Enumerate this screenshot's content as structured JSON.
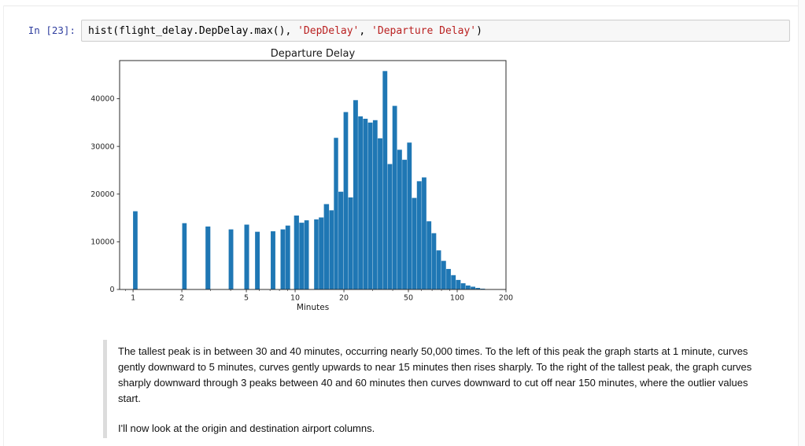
{
  "cell": {
    "prompt": "In [23]:",
    "code_tokens": [
      {
        "type": "plain",
        "text": "hist(flight_delay.DepDelay.max(), "
      },
      {
        "type": "string",
        "text": "'DepDelay'"
      },
      {
        "type": "plain",
        "text": ", "
      },
      {
        "type": "string",
        "text": "'Departure Delay'"
      },
      {
        "type": "plain",
        "text": ")"
      }
    ]
  },
  "chart_data": {
    "type": "bar",
    "subtype": "histogram",
    "title": "Departure Delay",
    "xlabel": "Minutes",
    "ylabel": "",
    "xscale": "log",
    "xlim": [
      0.826,
      200
    ],
    "ylim": [
      0,
      48000
    ],
    "xticks": [
      1,
      2,
      5,
      10,
      20,
      50,
      100,
      200
    ],
    "xticks_minor": [
      0.9,
      3,
      4,
      6,
      7,
      8,
      9,
      30,
      40,
      60,
      70,
      80,
      90
    ],
    "yticks": [
      0,
      10000,
      20000,
      30000,
      40000
    ],
    "grid": false,
    "legend": null,
    "bar_color": "#1f77b4",
    "bars_format": "[x_left_minutes, x_right_minutes, count]",
    "bars": [
      [
        1.0,
        1.07,
        16400
      ],
      [
        2.01,
        2.15,
        13900
      ],
      [
        2.8,
        3.01,
        13200
      ],
      [
        3.89,
        4.17,
        12600
      ],
      [
        4.86,
        5.22,
        13600
      ],
      [
        5.66,
        6.07,
        12100
      ],
      [
        7.07,
        7.58,
        12200
      ],
      [
        8.13,
        8.72,
        12600
      ],
      [
        8.72,
        9.35,
        13400
      ],
      [
        9.85,
        10.6,
        15500
      ],
      [
        10.6,
        11.4,
        14000
      ],
      [
        11.4,
        12.2,
        14500
      ],
      [
        13.1,
        14.0,
        14700
      ],
      [
        14.0,
        15.05,
        15100
      ],
      [
        15.05,
        16.25,
        17900
      ],
      [
        16.25,
        17.35,
        16600
      ],
      [
        17.35,
        18.5,
        31800
      ],
      [
        18.5,
        19.9,
        20500
      ],
      [
        19.9,
        21.3,
        37200
      ],
      [
        21.3,
        22.85,
        19300
      ],
      [
        22.85,
        24.5,
        39700
      ],
      [
        24.5,
        26.25,
        36300
      ],
      [
        26.25,
        28.15,
        35800
      ],
      [
        28.15,
        30.2,
        35000
      ],
      [
        30.2,
        32.35,
        35500
      ],
      [
        32.35,
        34.7,
        31700
      ],
      [
        34.7,
        37.2,
        45800
      ],
      [
        37.2,
        39.85,
        26300
      ],
      [
        39.85,
        42.7,
        38500
      ],
      [
        42.7,
        45.8,
        29300
      ],
      [
        45.8,
        49.1,
        27200
      ],
      [
        49.1,
        52.6,
        30800
      ],
      [
        52.6,
        56.4,
        19200
      ],
      [
        56.4,
        60.5,
        22700
      ],
      [
        60.5,
        64.8,
        23500
      ],
      [
        64.8,
        69.5,
        14300
      ],
      [
        69.5,
        74.5,
        11800
      ],
      [
        74.5,
        79.8,
        8200
      ],
      [
        79.8,
        85.6,
        6000
      ],
      [
        85.6,
        91.7,
        4300
      ],
      [
        91.7,
        98.3,
        3000
      ],
      [
        98.3,
        105.4,
        2000
      ],
      [
        105.4,
        113.0,
        1300
      ],
      [
        113.0,
        121.1,
        830
      ],
      [
        121.1,
        129.8,
        580
      ],
      [
        129.8,
        139.1,
        330
      ],
      [
        139.1,
        149.1,
        170
      ],
      [
        149.1,
        159.8,
        80
      ]
    ]
  },
  "markdown": {
    "paragraphs": [
      "The tallest peak is in between 30 and 40 minutes, occurring nearly 50,000 times. To the left of this peak the graph starts at 1 minute, curves gently downward to 5 minutes, curves gently upwards to near 15 minutes then rises sharply. To the right of the tallest peak, the graph curves sharply downward through 3 peaks between 40 and 60 minutes then curves downward to cut off near 150 minutes, where the outlier values start.",
      "I'll now look at the origin and destination airport columns."
    ]
  },
  "colors": {
    "prompt_blue": "#303F9F",
    "string_red": "#BA2121",
    "bar_blue": "#1f77b4",
    "code_cell_bg": "#f7f7f7",
    "code_cell_border": "#cfcfcf",
    "blockquote_bar": "#dcdcdc"
  }
}
